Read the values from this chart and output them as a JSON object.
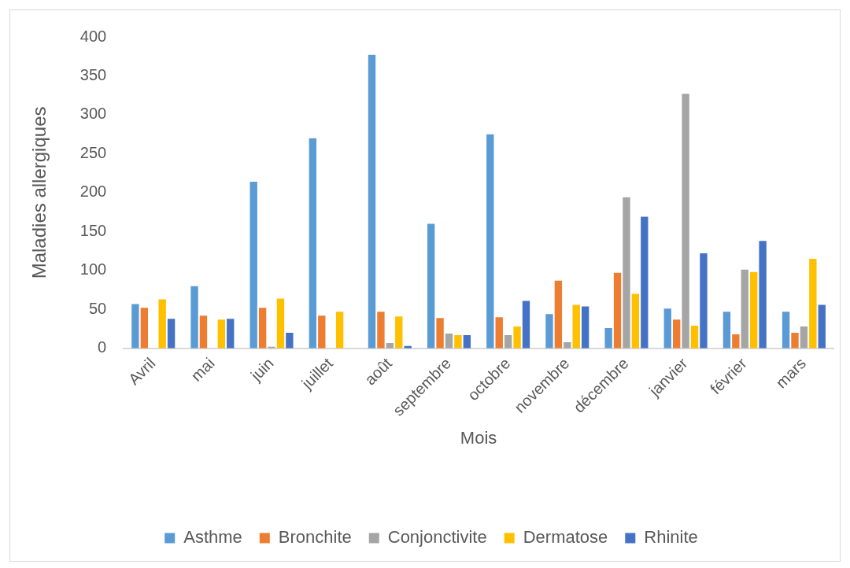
{
  "chart_data": {
    "type": "bar",
    "xlabel": "Mois",
    "ylabel": "Maladies allergiques",
    "categories": [
      "Avril",
      "mai",
      "juin",
      "juillet",
      "août",
      "septembre",
      "octobre",
      "novembre",
      "décembre",
      "janvier",
      "février",
      "mars"
    ],
    "series": [
      {
        "name": "Asthme",
        "color": "#5b9bd5",
        "values": [
          57,
          80,
          214,
          270,
          377,
          160,
          275,
          44,
          26,
          51,
          47,
          47
        ]
      },
      {
        "name": "Bronchite",
        "color": "#ed7d31",
        "values": [
          52,
          42,
          52,
          42,
          47,
          39,
          40,
          87,
          97,
          37,
          18,
          20
        ]
      },
      {
        "name": "Conjonctivite",
        "color": "#a5a5a5",
        "values": [
          null,
          null,
          2,
          null,
          7,
          19,
          17,
          8,
          194,
          327,
          101,
          28
        ]
      },
      {
        "name": "Dermatose",
        "color": "#ffc000",
        "values": [
          63,
          37,
          64,
          47,
          41,
          17,
          28,
          56,
          70,
          29,
          98,
          115
        ]
      },
      {
        "name": "Rhinite",
        "color": "#4472c4",
        "values": [
          38,
          38,
          20,
          null,
          3,
          17,
          61,
          54,
          169,
          122,
          138,
          56
        ]
      }
    ],
    "ylim": [
      0,
      400
    ],
    "yticks": [
      0,
      50,
      100,
      150,
      200,
      250,
      300,
      350,
      400
    ],
    "legend": "bottom"
  }
}
